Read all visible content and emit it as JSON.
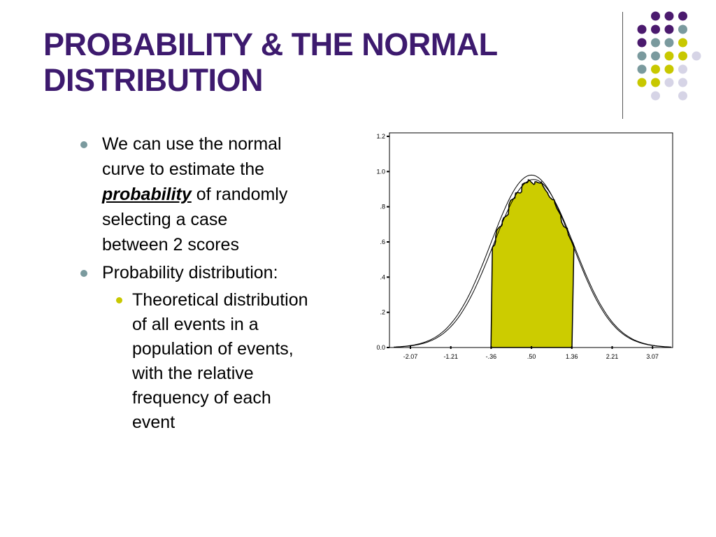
{
  "slide": {
    "title_line1": "PROBABILITY & THE NORMAL",
    "title_line2": "DISTRIBUTION",
    "bullet1": {
      "line1": "We can use the normal",
      "line2": "curve to estimate the",
      "emphasis": "probability",
      "line3_rest": " of randomly",
      "line4": "selecting a case",
      "line5": "between 2 scores"
    },
    "bullet2": "Probability distribution:",
    "sub_bullet": {
      "line1": "Theoretical distribution",
      "line2": "of all events in a",
      "line3": "population of events,",
      "line4": "with the relative",
      "line5": "frequency of each",
      "line6": "event"
    }
  },
  "colors": {
    "title": "#3d1a6e",
    "dot_purple": "#4b1a6e",
    "dot_teal": "#7a9a9e",
    "dot_yellow": "#c8c800",
    "dot_lavender": "#d6d4e6",
    "shaded_area": "#cccc00"
  },
  "chart_data": {
    "type": "area",
    "y_ticks": [
      "0.0",
      ".2",
      ".4",
      ".6",
      ".8",
      "1.0",
      "1.2"
    ],
    "x_ticks": [
      "-2.07",
      "-1.21",
      "-.36",
      ".50",
      "1.36",
      "2.21",
      "3.07"
    ],
    "ylim": [
      0,
      1.2
    ],
    "shaded_range": [
      "-.36",
      "1.36"
    ],
    "peak": 0.98
  }
}
